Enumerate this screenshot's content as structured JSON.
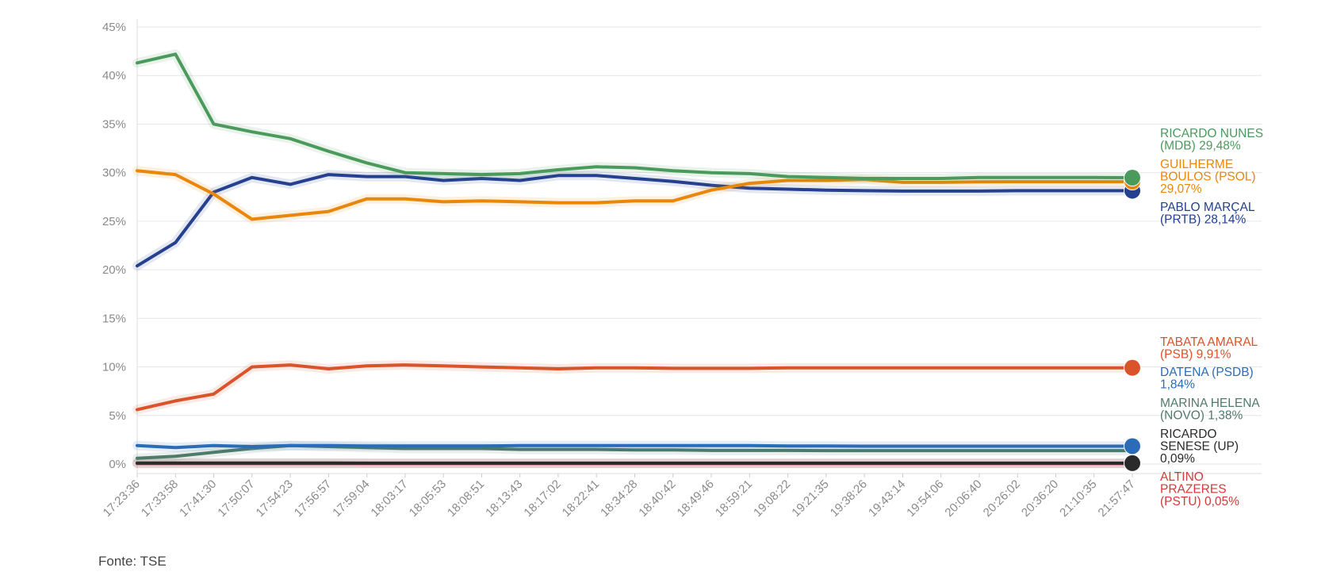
{
  "source": "Fonte: TSE",
  "chart_data": {
    "type": "line",
    "yticks": [
      0,
      5,
      10,
      15,
      20,
      25,
      30,
      35,
      40,
      45
    ],
    "ytick_labels": [
      "0%",
      "5%",
      "10%",
      "15%",
      "20%",
      "25%",
      "30%",
      "35%",
      "40%",
      "45%"
    ],
    "ylim": [
      0,
      45
    ],
    "grid": true,
    "legend": "end-labels-right",
    "x": [
      "17:23:36",
      "17:33:58",
      "17:41:30",
      "17:50:07",
      "17:54:23",
      "17:56:57",
      "17:59:04",
      "18:03:17",
      "18:05:53",
      "18:08:51",
      "18:13:43",
      "18:17:02",
      "18:22:41",
      "18:34:28",
      "18:40:42",
      "18:49:46",
      "18:59:21",
      "19:08:22",
      "19:21:35",
      "19:38:26",
      "19:43:14",
      "19:54:06",
      "20:06:40",
      "20:26:02",
      "20:36:20",
      "21:10:35",
      "21:57:47"
    ],
    "series": [
      {
        "label_lines": [
          "RICARDO NUNES",
          "(MDB) 29,48%"
        ],
        "color": "#4a9a5c",
        "final": 29.48,
        "values": [
          41.3,
          42.2,
          35.0,
          34.2,
          33.5,
          32.2,
          31.0,
          30.0,
          29.9,
          29.8,
          29.9,
          30.3,
          30.6,
          30.5,
          30.2,
          30.0,
          29.9,
          29.6,
          29.5,
          29.4,
          29.4,
          29.4,
          29.5,
          29.5,
          29.5,
          29.5,
          29.48
        ]
      },
      {
        "label_lines": [
          "GUILHERME",
          "BOULOS (PSOL)",
          "29,07%"
        ],
        "color": "#e8870a",
        "final": 29.07,
        "values": [
          30.2,
          29.8,
          27.8,
          25.2,
          25.6,
          26.0,
          27.3,
          27.3,
          27.0,
          27.1,
          27.0,
          26.9,
          26.9,
          27.1,
          27.1,
          28.2,
          28.9,
          29.2,
          29.2,
          29.3,
          29.0,
          29.0,
          29.05,
          29.07,
          29.07,
          29.07,
          29.07
        ]
      },
      {
        "label_lines": [
          "PABLO MARÇAL",
          "(PRTB) 28,14%"
        ],
        "color": "#25408f",
        "final": 28.14,
        "values": [
          20.4,
          22.8,
          28.0,
          29.5,
          28.8,
          29.8,
          29.6,
          29.6,
          29.2,
          29.4,
          29.2,
          29.7,
          29.7,
          29.4,
          29.1,
          28.7,
          28.4,
          28.3,
          28.2,
          28.14,
          28.1,
          28.1,
          28.1,
          28.14,
          28.14,
          28.14,
          28.14
        ]
      },
      {
        "label_lines": [
          "TABATA AMARAL",
          "(PSB) 9,91%"
        ],
        "color": "#d9532b",
        "final": 9.91,
        "values": [
          5.6,
          6.5,
          7.2,
          10.0,
          10.2,
          9.8,
          10.1,
          10.2,
          10.1,
          10.0,
          9.9,
          9.8,
          9.9,
          9.9,
          9.85,
          9.85,
          9.85,
          9.9,
          9.91,
          9.91,
          9.91,
          9.91,
          9.91,
          9.91,
          9.91,
          9.91,
          9.91
        ]
      },
      {
        "label_lines": [
          "DATENA (PSDB)",
          "1,84%"
        ],
        "color": "#2b6cb8",
        "final": 1.84,
        "values": [
          1.9,
          1.7,
          1.9,
          1.8,
          1.9,
          1.9,
          1.85,
          1.85,
          1.85,
          1.85,
          1.9,
          1.9,
          1.9,
          1.9,
          1.9,
          1.9,
          1.9,
          1.85,
          1.85,
          1.84,
          1.84,
          1.84,
          1.84,
          1.84,
          1.84,
          1.84,
          1.84
        ]
      },
      {
        "label_lines": [
          "MARINA HELENA",
          "(NOVO) 1,38%"
        ],
        "color": "#4f7b6a",
        "final": 1.38,
        "values": [
          0.6,
          0.8,
          1.2,
          1.6,
          1.9,
          1.8,
          1.7,
          1.6,
          1.6,
          1.6,
          1.5,
          1.5,
          1.5,
          1.45,
          1.45,
          1.4,
          1.4,
          1.4,
          1.38,
          1.38,
          1.38,
          1.38,
          1.38,
          1.38,
          1.38,
          1.38,
          1.38
        ]
      },
      {
        "label_lines": [
          "RICARDO",
          "SENESE (UP)",
          "0,09%"
        ],
        "color": "#2a2a2a",
        "final": 0.09,
        "values": [
          0.1,
          0.1,
          0.1,
          0.1,
          0.1,
          0.1,
          0.09,
          0.09,
          0.09,
          0.09,
          0.09,
          0.09,
          0.09,
          0.09,
          0.09,
          0.09,
          0.09,
          0.09,
          0.09,
          0.09,
          0.09,
          0.09,
          0.09,
          0.09,
          0.09,
          0.09,
          0.09
        ]
      },
      {
        "label_lines": [
          "ALTINO",
          "PRAZERES",
          "(PSTU) 0,05%"
        ],
        "color": "#d43a3a",
        "final": 0.05,
        "values": [
          0.05,
          0.05,
          0.05,
          0.05,
          0.05,
          0.05,
          0.05,
          0.05,
          0.05,
          0.05,
          0.05,
          0.05,
          0.05,
          0.05,
          0.05,
          0.05,
          0.05,
          0.05,
          0.05,
          0.05,
          0.05,
          0.05,
          0.05,
          0.05,
          0.05,
          0.05,
          0.05
        ]
      }
    ]
  }
}
